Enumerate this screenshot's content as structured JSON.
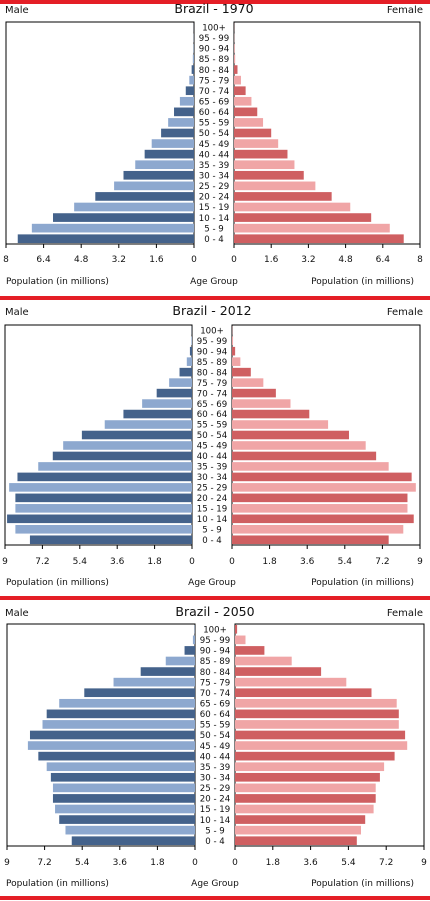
{
  "divider_color": "#e41e26",
  "colors": {
    "male_dark": "#44628b",
    "male_light": "#8da8cf",
    "female_dark": "#cf5f61",
    "female_light": "#f0a5a6"
  },
  "age_groups": [
    "0 - 4",
    "5 - 9",
    "10 - 14",
    "15 - 19",
    "20 - 24",
    "25 - 29",
    "30 - 34",
    "35 - 39",
    "40 - 44",
    "45 - 49",
    "50 - 54",
    "55 - 59",
    "60 - 64",
    "65 - 69",
    "70 - 74",
    "75 - 79",
    "80 - 84",
    "85 - 89",
    "90 - 94",
    "95 - 99",
    "100+"
  ],
  "chart_data": [
    {
      "type": "bar",
      "title": "Brazil - 1970",
      "left_label": "Male",
      "right_label": "Female",
      "center_label": "Age Group",
      "xlabel_male": "Population (in millions)",
      "xlabel_female": "Population (in millions)",
      "xlim": [
        0,
        8
      ],
      "male_ticks": [
        "8",
        "6.4",
        "4.8",
        "3.2",
        "1.6",
        "0"
      ],
      "female_ticks": [
        "0",
        "1.6",
        "3.2",
        "4.8",
        "6.4",
        "8"
      ],
      "series": [
        {
          "name": "Male",
          "values": [
            7.5,
            6.9,
            6.0,
            5.1,
            4.2,
            3.4,
            3.0,
            2.5,
            2.1,
            1.8,
            1.4,
            1.1,
            0.85,
            0.6,
            0.35,
            0.2,
            0.1,
            0.05,
            0.02,
            0.01,
            0.005
          ]
        },
        {
          "name": "Female",
          "values": [
            7.3,
            6.7,
            5.9,
            5.0,
            4.2,
            3.5,
            3.0,
            2.6,
            2.3,
            1.9,
            1.6,
            1.25,
            1.0,
            0.75,
            0.5,
            0.3,
            0.15,
            0.05,
            0.02,
            0.01,
            0.005
          ]
        }
      ]
    },
    {
      "type": "bar",
      "title": "Brazil - 2012",
      "left_label": "Male",
      "right_label": "Female",
      "center_label": "Age Group",
      "xlabel_male": "Population (in millions)",
      "xlabel_female": "Population (in millions)",
      "xlim": [
        0,
        9
      ],
      "male_ticks": [
        "9",
        "7.2",
        "5.4",
        "3.6",
        "1.8",
        "0"
      ],
      "female_ticks": [
        "0",
        "1.8",
        "3.6",
        "5.4",
        "7.2",
        "9"
      ],
      "series": [
        {
          "name": "Male",
          "values": [
            7.8,
            8.5,
            8.9,
            8.5,
            8.5,
            8.8,
            8.4,
            7.4,
            6.7,
            6.2,
            5.3,
            4.2,
            3.3,
            2.4,
            1.7,
            1.1,
            0.6,
            0.25,
            0.1,
            0.03,
            0.01
          ]
        },
        {
          "name": "Female",
          "values": [
            7.5,
            8.2,
            8.7,
            8.4,
            8.4,
            8.8,
            8.6,
            7.5,
            6.9,
            6.4,
            5.6,
            4.6,
            3.7,
            2.8,
            2.1,
            1.5,
            0.9,
            0.4,
            0.15,
            0.05,
            0.01
          ]
        }
      ]
    },
    {
      "type": "bar",
      "title": "Brazil - 2050",
      "left_label": "Male",
      "right_label": "Female",
      "center_label": "Age Group",
      "xlabel_male": "Population (in millions)",
      "xlabel_female": "Population (in millions)",
      "xlim": [
        0,
        9
      ],
      "male_ticks": [
        "9",
        "7.2",
        "5.4",
        "3.6",
        "1.8",
        "0"
      ],
      "female_ticks": [
        "0",
        "1.8",
        "3.6",
        "5.4",
        "7.2",
        "9"
      ],
      "series": [
        {
          "name": "Male",
          "values": [
            5.9,
            6.2,
            6.5,
            6.7,
            6.8,
            6.8,
            6.9,
            7.1,
            7.5,
            8.0,
            7.9,
            7.3,
            7.1,
            6.5,
            5.3,
            3.9,
            2.6,
            1.4,
            0.5,
            0.1,
            0.02
          ]
        },
        {
          "name": "Female",
          "values": [
            5.8,
            6.0,
            6.2,
            6.6,
            6.7,
            6.7,
            6.9,
            7.1,
            7.6,
            8.2,
            8.1,
            7.8,
            7.8,
            7.7,
            6.5,
            5.3,
            4.1,
            2.7,
            1.4,
            0.5,
            0.1
          ]
        }
      ]
    }
  ]
}
